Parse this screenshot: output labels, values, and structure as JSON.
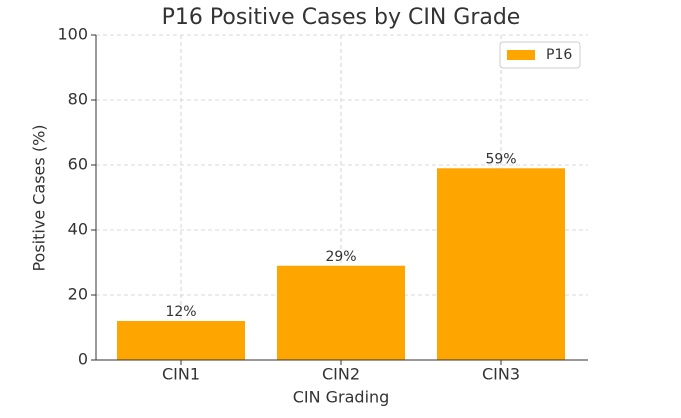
{
  "chart_data": {
    "type": "bar",
    "title": "P16 Positive Cases by CIN Grade",
    "x_label": "CIN Grading",
    "y_label": "Positive Cases (%)",
    "categories": [
      "CIN1",
      "CIN2",
      "CIN3"
    ],
    "series": [
      {
        "name": "P16",
        "color": "#ffa500",
        "values": [
          12,
          29,
          59
        ],
        "value_labels": [
          "12%",
          "29%",
          "59%"
        ]
      }
    ],
    "ylim": [
      0,
      100
    ],
    "yticks": [
      0,
      20,
      40,
      60,
      80,
      100
    ],
    "grid": true,
    "legend": "upper right"
  }
}
